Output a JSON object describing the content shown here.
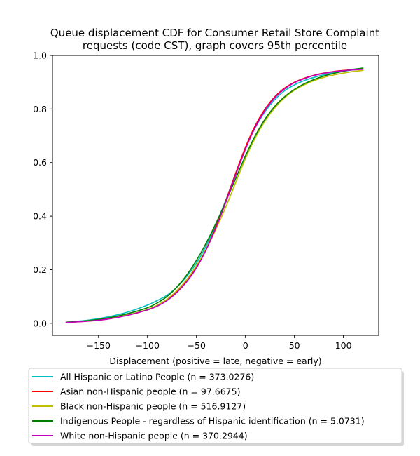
{
  "chart_data": {
    "type": "line",
    "title": "Queue displacement CDF for Consumer Retail Store Complaint requests (code CST), graph covers 95th percentile",
    "title_lines": [
      "Queue displacement CDF for Consumer Retail Store Complaint",
      "requests (code CST), graph covers 95th percentile"
    ],
    "xlabel": "Displacement (positive = late, negative = early)",
    "ylabel": "",
    "xlim": [
      -197,
      136
    ],
    "ylim": [
      -0.045,
      1.0
    ],
    "xticks": [
      -150,
      -100,
      -50,
      0,
      50,
      100
    ],
    "yticks": [
      0.0,
      0.2,
      0.4,
      0.6,
      0.8,
      1.0
    ],
    "xtick_labels": [
      "−150",
      "−100",
      "−50",
      "0",
      "50",
      "100"
    ],
    "ytick_labels": [
      "0.0",
      "0.2",
      "0.4",
      "0.6",
      "0.8",
      "1.0"
    ],
    "grid": false,
    "legend_position": "below-plot",
    "x": [
      -183,
      -160,
      -140,
      -120,
      -100,
      -90,
      -80,
      -70,
      -60,
      -50,
      -40,
      -30,
      -20,
      -10,
      0,
      10,
      20,
      30,
      40,
      50,
      60,
      70,
      80,
      90,
      100,
      110,
      120
    ],
    "series": [
      {
        "name": "All Hispanic or Latino People (n = 373.0276)",
        "color": "#00bfbf",
        "values": [
          0.004,
          0.012,
          0.024,
          0.042,
          0.068,
          0.085,
          0.105,
          0.135,
          0.175,
          0.225,
          0.29,
          0.37,
          0.46,
          0.56,
          0.655,
          0.73,
          0.79,
          0.835,
          0.868,
          0.89,
          0.906,
          0.918,
          0.928,
          0.935,
          0.941,
          0.946,
          0.95
        ]
      },
      {
        "name": "Asian non-Hispanic people (n = 97.6675)",
        "color": "#ff0000",
        "values": [
          0.003,
          0.008,
          0.016,
          0.03,
          0.05,
          0.065,
          0.087,
          0.117,
          0.158,
          0.21,
          0.278,
          0.362,
          0.458,
          0.56,
          0.657,
          0.738,
          0.8,
          0.846,
          0.878,
          0.9,
          0.915,
          0.926,
          0.934,
          0.94,
          0.944,
          0.947,
          0.949
        ]
      },
      {
        "name": "Black non-Hispanic people (n = 516.9127)",
        "color": "#bfbf00",
        "values": [
          0.004,
          0.01,
          0.018,
          0.032,
          0.052,
          0.068,
          0.09,
          0.122,
          0.163,
          0.215,
          0.278,
          0.352,
          0.435,
          0.525,
          0.615,
          0.692,
          0.755,
          0.804,
          0.842,
          0.87,
          0.89,
          0.906,
          0.918,
          0.927,
          0.934,
          0.94,
          0.944
        ]
      },
      {
        "name": "Indigenous People - regardless of Hispanic identification (n = 5.0731)",
        "color": "#008000",
        "values": [
          0.004,
          0.01,
          0.02,
          0.036,
          0.058,
          0.076,
          0.1,
          0.135,
          0.18,
          0.235,
          0.3,
          0.374,
          0.455,
          0.54,
          0.625,
          0.7,
          0.762,
          0.81,
          0.846,
          0.873,
          0.894,
          0.91,
          0.923,
          0.933,
          0.941,
          0.948,
          0.953
        ]
      },
      {
        "name": "White non-Hispanic people (n = 370.2944)",
        "color": "#bf00bf",
        "values": [
          0.003,
          0.008,
          0.016,
          0.03,
          0.05,
          0.064,
          0.085,
          0.115,
          0.155,
          0.207,
          0.275,
          0.358,
          0.452,
          0.553,
          0.65,
          0.732,
          0.795,
          0.842,
          0.875,
          0.898,
          0.913,
          0.925,
          0.933,
          0.939,
          0.943,
          0.946,
          0.948
        ]
      }
    ]
  }
}
